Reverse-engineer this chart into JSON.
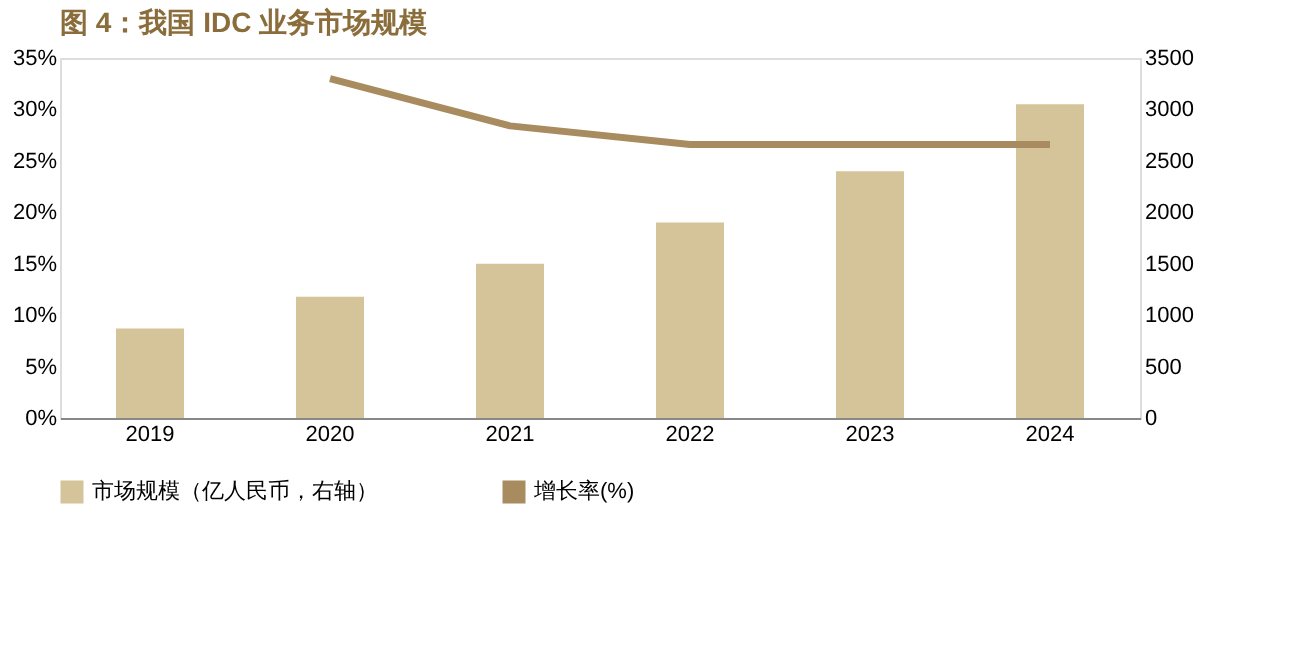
{
  "chart_data": {
    "type": "bar",
    "title": "图 4：我国 IDC 业务市场规模",
    "categories": [
      "2019",
      "2020",
      "2021",
      "2022",
      "2023",
      "2024"
    ],
    "series": [
      {
        "name": "市场规模（亿人民币，右轴）",
        "color": "#d5c49a",
        "axis": "y2",
        "values": [
          870,
          1180,
          1500,
          1900,
          2400,
          3050
        ]
      },
      {
        "name": "增长率(%)",
        "type": "line",
        "color": "#a88b5e",
        "values": [
          null,
          33.0,
          28.4,
          26.6,
          26.6,
          26.6
        ]
      }
    ],
    "ylim": [
      0,
      35
    ],
    "yticks": [
      {
        "value": 0,
        "label": "0%"
      },
      {
        "value": 5,
        "label": "5%"
      },
      {
        "value": 10,
        "label": "10%"
      },
      {
        "value": 15,
        "label": "15%"
      },
      {
        "value": 20,
        "label": "20%"
      },
      {
        "value": 25,
        "label": "25%"
      },
      {
        "value": 30,
        "label": "30%"
      },
      {
        "value": 35,
        "label": "35%"
      }
    ],
    "y2lim": [
      0,
      3500
    ],
    "y2ticks": [
      0,
      500,
      1000,
      1500,
      2000,
      2500,
      3000,
      3500
    ],
    "legend": "bottom",
    "grid": false
  }
}
